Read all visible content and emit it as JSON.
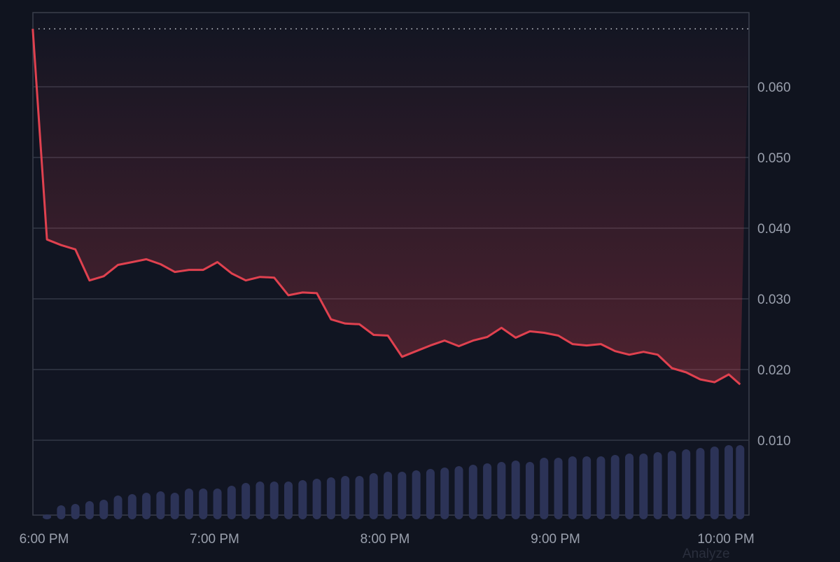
{
  "chart_data": {
    "type": "line",
    "title": "",
    "xlabel": "",
    "ylabel": "",
    "ylim": [
      -0.0006,
      0.0705
    ],
    "grid": true,
    "y_axis_side": "right",
    "y_ticks": [
      "0.010",
      "0.020",
      "0.030",
      "0.040",
      "0.050",
      "0.060"
    ],
    "y_tick_values": [
      0.01,
      0.02,
      0.03,
      0.04,
      0.05,
      0.06
    ],
    "x_ticks": [
      "6:00 PM",
      "7:00 PM",
      "8:00 PM",
      "9:00 PM",
      "10:00 PM"
    ],
    "x_tick_times": [
      "18:00",
      "19:00",
      "20:00",
      "21:00",
      "22:00"
    ],
    "reference_line": {
      "value": 0.0682,
      "style": "dotted"
    },
    "series": [
      {
        "type": "line",
        "color": "#e0414f",
        "x": [
          "17:56",
          "18:01",
          "18:06",
          "18:11",
          "18:16",
          "18:21",
          "18:26",
          "18:31",
          "18:36",
          "18:41",
          "18:46",
          "18:51",
          "18:56",
          "19:01",
          "19:06",
          "19:11",
          "19:16",
          "19:21",
          "19:26",
          "19:31",
          "19:36",
          "19:41",
          "19:46",
          "19:51",
          "19:56",
          "20:01",
          "20:06",
          "20:11",
          "20:16",
          "20:21",
          "20:26",
          "20:31",
          "20:36",
          "20:41",
          "20:46",
          "20:51",
          "20:56",
          "21:01",
          "21:06",
          "21:11",
          "21:16",
          "21:21",
          "21:26",
          "21:31",
          "21:36",
          "21:41",
          "21:46",
          "21:51",
          "21:56",
          "22:01",
          "22:05"
        ],
        "values": [
          0.0682,
          0.0384,
          0.0376,
          0.037,
          0.0326,
          0.0332,
          0.0348,
          0.0352,
          0.0356,
          0.0349,
          0.0338,
          0.0341,
          0.0341,
          0.0352,
          0.0336,
          0.0326,
          0.0331,
          0.033,
          0.0305,
          0.0309,
          0.0308,
          0.0271,
          0.0265,
          0.0264,
          0.0249,
          0.0248,
          0.0218,
          0.0226,
          0.0234,
          0.0241,
          0.0233,
          0.0241,
          0.0246,
          0.0259,
          0.0245,
          0.0254,
          0.0252,
          0.0248,
          0.0236,
          0.0234,
          0.0236,
          0.0226,
          0.0221,
          0.0225,
          0.0221,
          0.0202,
          0.0196,
          0.0186,
          0.0182,
          0.0193,
          0.0179
        ]
      },
      {
        "type": "bar",
        "color": "#2c3357",
        "values": [
          0.01,
          0.14,
          0.16,
          0.2,
          0.22,
          0.28,
          0.3,
          0.32,
          0.34,
          0.32,
          0.38,
          0.38,
          0.38,
          0.42,
          0.46,
          0.48,
          0.48,
          0.48,
          0.5,
          0.52,
          0.54,
          0.56,
          0.56,
          0.6,
          0.62,
          0.62,
          0.64,
          0.66,
          0.68,
          0.7,
          0.72,
          0.74,
          0.76,
          0.78,
          0.76,
          0.82,
          0.82,
          0.84,
          0.84,
          0.84,
          0.86,
          0.88,
          0.88,
          0.9,
          0.92,
          0.94,
          0.96,
          0.98,
          1.0,
          1.0
        ]
      }
    ]
  },
  "footer": {
    "analyze_label": "Analyze"
  }
}
